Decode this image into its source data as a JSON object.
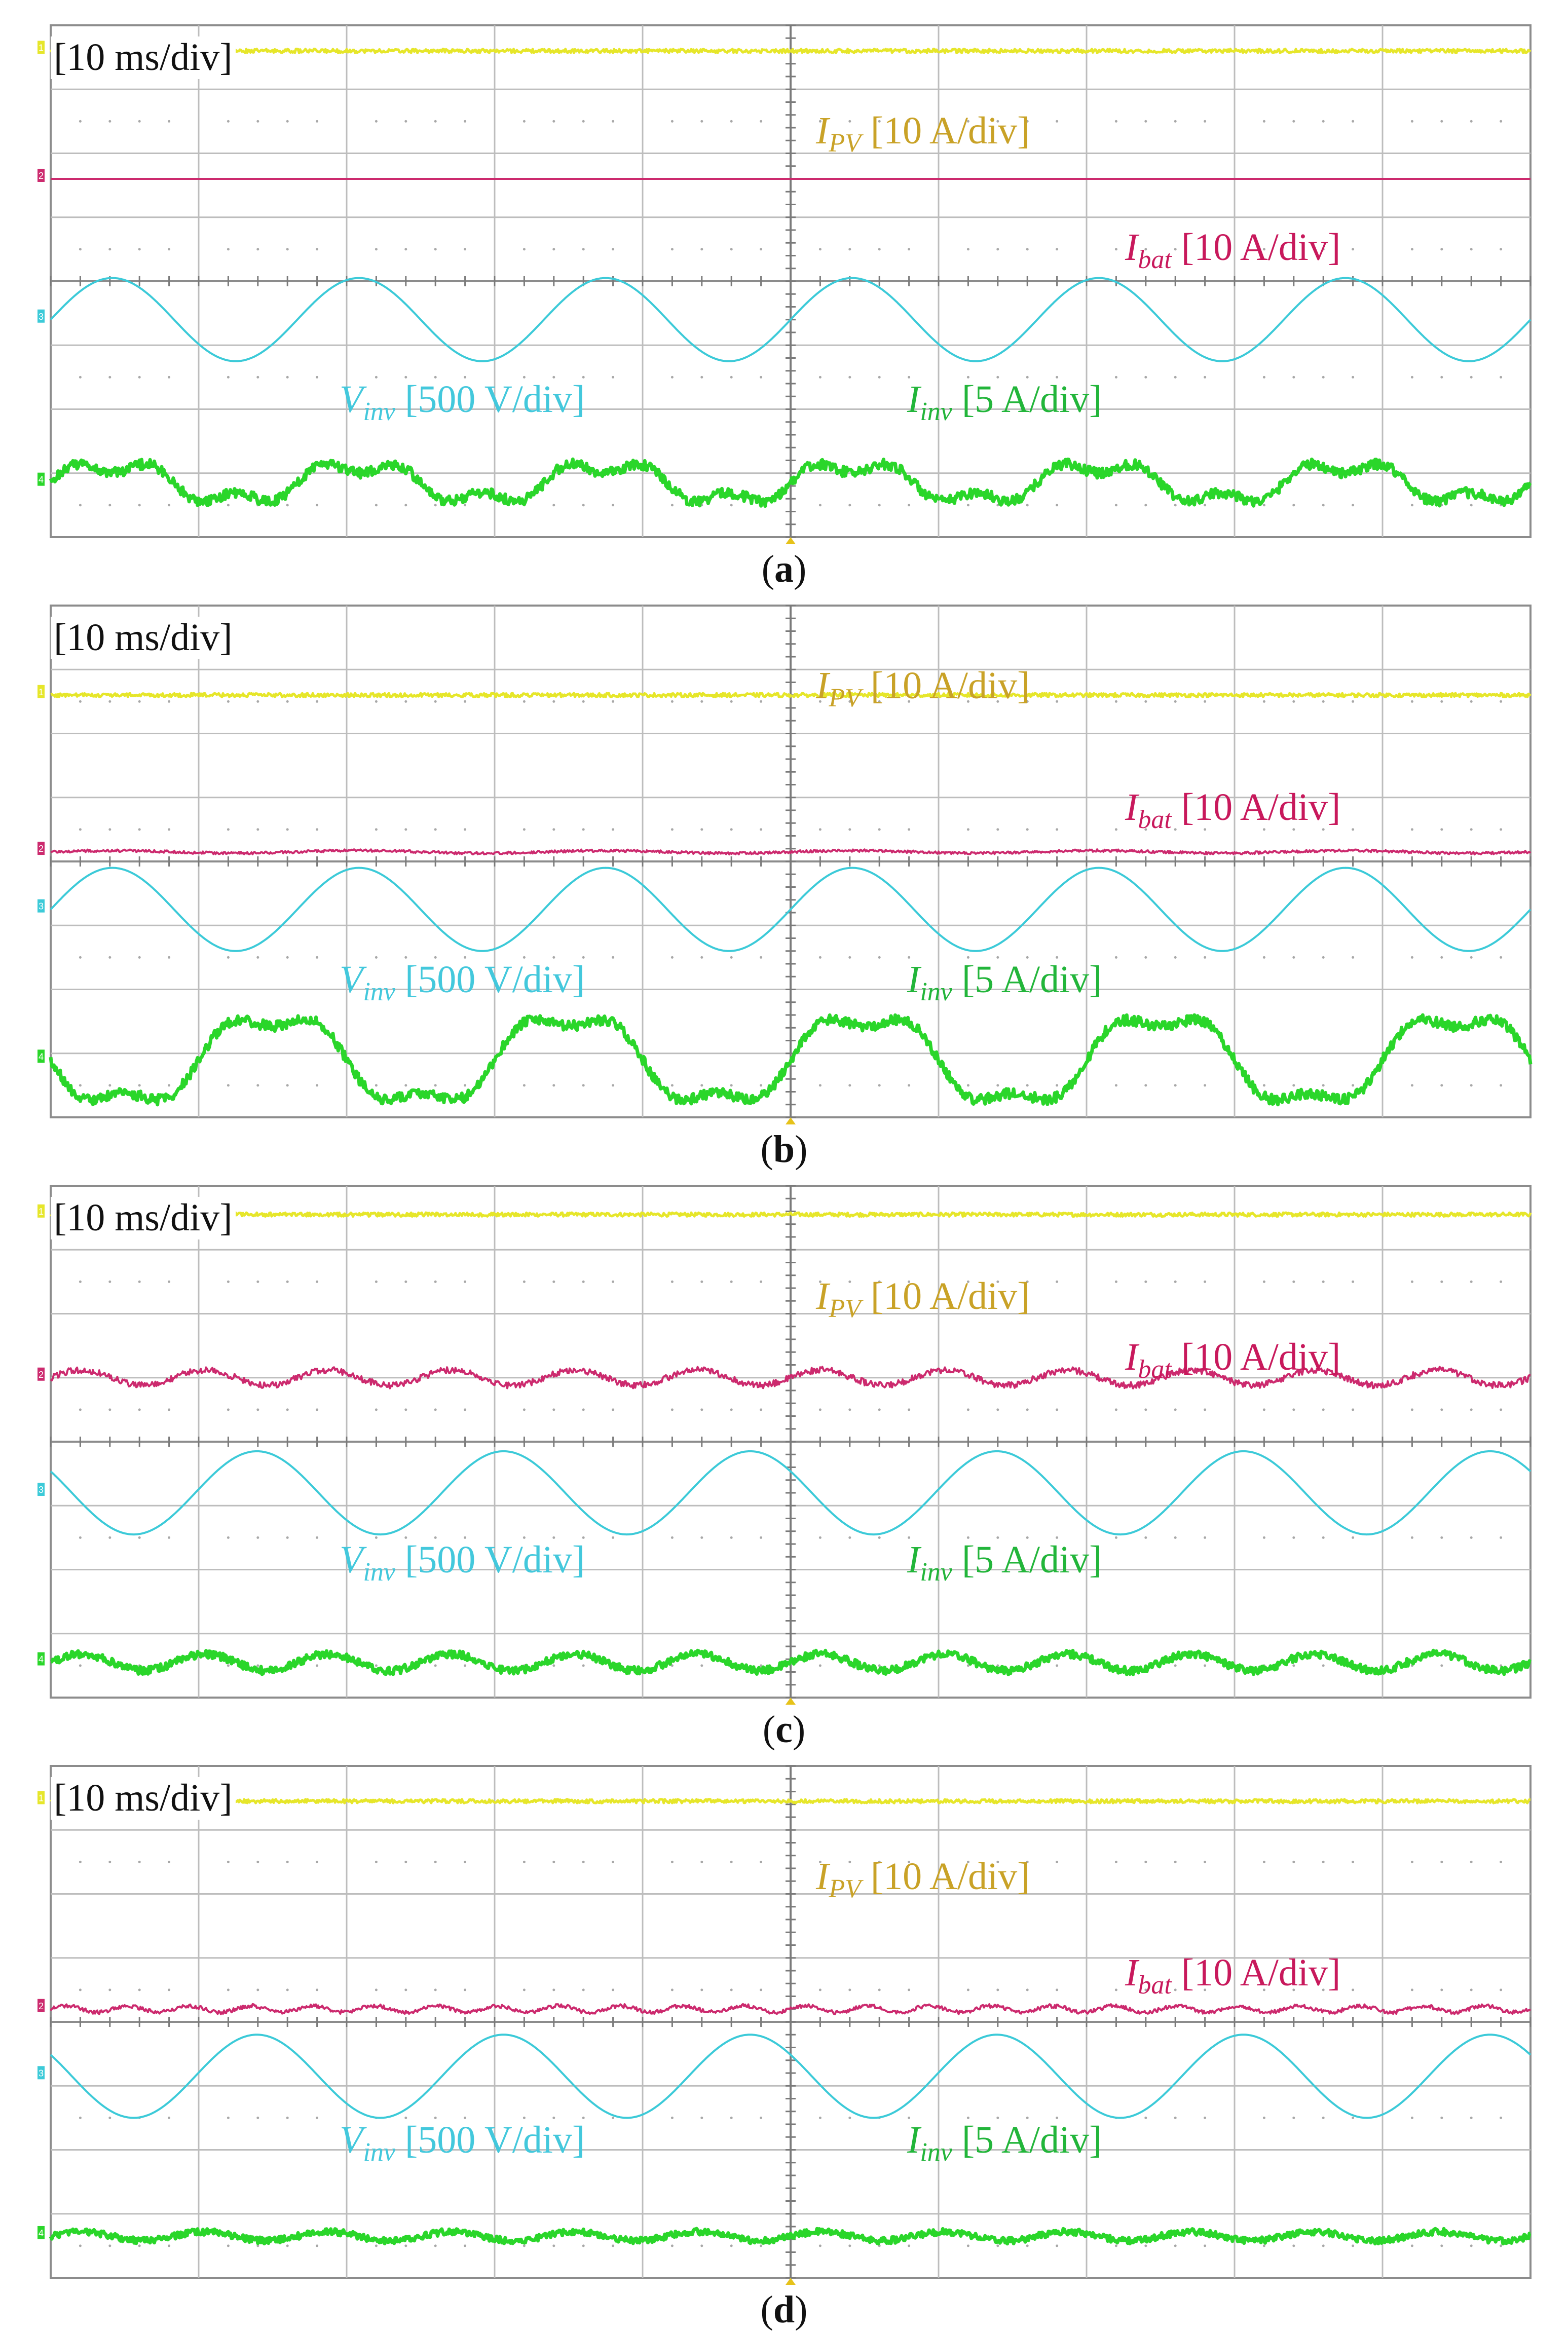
{
  "chart_data": [
    {
      "type": "line",
      "caption_letter": "a",
      "timebase": "[10 ms/div]",
      "x_divisions": 10,
      "y_divisions": 8,
      "labels": {
        "ipv": {
          "symbol": "I",
          "sub": "PV",
          "scale": " [10 A/div]"
        },
        "ibat": {
          "symbol": "I",
          "sub": "bat",
          "scale": " [10 A/div]"
        },
        "vinv": {
          "symbol": "V",
          "sub": "inv",
          "scale": " [500 V/div]"
        },
        "iinv": {
          "symbol": "I",
          "sub": "inv",
          "scale": " [5 A/div]"
        }
      },
      "channel_markers": [
        "1",
        "2",
        "3",
        "4"
      ],
      "series": [
        {
          "channel": "ipv",
          "color": "#e6e62a",
          "level_div": 7.6,
          "amplitude_div": 0.0,
          "fundamental_periods": 0,
          "ripple_div": 0.03
        },
        {
          "channel": "ibat",
          "color": "#cc2a6e",
          "level_div": 5.6,
          "amplitude_div": 0.0,
          "fundamental_periods": 0,
          "ripple_div": 0.0
        },
        {
          "channel": "vinv",
          "color": "#3ccad8",
          "level_div": 3.4,
          "amplitude_div": 0.65,
          "fundamental_periods": 6,
          "phase": 0.0,
          "ripple_div": 0.0
        },
        {
          "channel": "iinv",
          "color": "#2ad62a",
          "level_div": 0.85,
          "amplitude_div": 0.28,
          "fundamental_periods": 6,
          "phase": 0.0,
          "harmonic3": 0.45,
          "ripple_div": 0.08
        }
      ]
    },
    {
      "type": "line",
      "caption_letter": "b",
      "timebase": "[10 ms/div]",
      "x_divisions": 10,
      "y_divisions": 8,
      "labels": {
        "ipv": {
          "symbol": "I",
          "sub": "PV",
          "scale": " [10 A/div]"
        },
        "ibat": {
          "symbol": "I",
          "sub": "bat",
          "scale": " [10 A/div]"
        },
        "vinv": {
          "symbol": "V",
          "sub": "inv",
          "scale": " [500 V/div]"
        },
        "iinv": {
          "symbol": "I",
          "sub": "inv",
          "scale": " [5 A/div]"
        }
      },
      "channel_markers": [
        "1",
        "2",
        "3",
        "4"
      ],
      "series": [
        {
          "channel": "ipv",
          "color": "#e6e62a",
          "level_div": 6.6,
          "amplitude_div": 0.0,
          "fundamental_periods": 0,
          "ripple_div": 0.03
        },
        {
          "channel": "ibat",
          "color": "#cc2a6e",
          "level_div": 4.15,
          "amplitude_div": 0.02,
          "fundamental_periods": 6,
          "phase": 0.0,
          "ripple_div": 0.02
        },
        {
          "channel": "vinv",
          "color": "#3ccad8",
          "level_div": 3.25,
          "amplitude_div": 0.65,
          "fundamental_periods": 6,
          "phase": 0.0,
          "ripple_div": 0.0
        },
        {
          "channel": "iinv",
          "color": "#2ad62a",
          "level_div": 0.9,
          "amplitude_div": 0.7,
          "fundamental_periods": 5,
          "phase": 3.14,
          "harmonic3": 0.25,
          "ripple_div": 0.08
        }
      ]
    },
    {
      "type": "line",
      "caption_letter": "c",
      "timebase": "[10 ms/div]",
      "x_divisions": 10,
      "y_divisions": 8,
      "labels": {
        "ipv": {
          "symbol": "I",
          "sub": "PV",
          "scale": " [10 A/div]"
        },
        "ibat": {
          "symbol": "I",
          "sub": "bat",
          "scale": " [10 A/div]"
        },
        "vinv": {
          "symbol": "V",
          "sub": "inv",
          "scale": " [500 V/div]"
        },
        "iinv": {
          "symbol": "I",
          "sub": "inv",
          "scale": " [5 A/div]"
        }
      },
      "channel_markers": [
        "1",
        "2",
        "3",
        "4"
      ],
      "series": [
        {
          "channel": "ipv",
          "color": "#e6e62a",
          "level_div": 7.55,
          "amplitude_div": 0.0,
          "fundamental_periods": 0,
          "ripple_div": 0.03
        },
        {
          "channel": "ibat",
          "color": "#cc2a6e",
          "level_div": 5.0,
          "amplitude_div": 0.12,
          "fundamental_periods": 12,
          "phase": 0.0,
          "ripple_div": 0.05
        },
        {
          "channel": "vinv",
          "color": "#3ccad8",
          "level_div": 3.2,
          "amplitude_div": 0.65,
          "fundamental_periods": 6,
          "phase": 2.6,
          "ripple_div": 0.0
        },
        {
          "channel": "iinv",
          "color": "#2ad62a",
          "level_div": 0.55,
          "amplitude_div": 0.13,
          "fundamental_periods": 12,
          "phase": 0.0,
          "ripple_div": 0.06
        }
      ]
    },
    {
      "type": "line",
      "caption_letter": "d",
      "timebase": "[10 ms/div]",
      "x_divisions": 10,
      "y_divisions": 8,
      "labels": {
        "ipv": {
          "symbol": "I",
          "sub": "PV",
          "scale": " [10 A/div]"
        },
        "ibat": {
          "symbol": "I",
          "sub": "bat",
          "scale": " [10 A/div]"
        },
        "vinv": {
          "symbol": "V",
          "sub": "inv",
          "scale": " [500 V/div]"
        },
        "iinv": {
          "symbol": "I",
          "sub": "inv",
          "scale": " [5 A/div]"
        }
      },
      "channel_markers": [
        "1",
        "2",
        "3",
        "4"
      ],
      "series": [
        {
          "channel": "ipv",
          "color": "#e6e62a",
          "level_div": 7.45,
          "amplitude_div": 0.0,
          "fundamental_periods": 0,
          "ripple_div": 0.03
        },
        {
          "channel": "ibat",
          "color": "#cc2a6e",
          "level_div": 4.2,
          "amplitude_div": 0.05,
          "fundamental_periods": 24,
          "phase": 0.0,
          "ripple_div": 0.03
        },
        {
          "channel": "vinv",
          "color": "#3ccad8",
          "level_div": 3.15,
          "amplitude_div": 0.65,
          "fundamental_periods": 6,
          "phase": 2.6,
          "ripple_div": 0.0
        },
        {
          "channel": "iinv",
          "color": "#2ad62a",
          "level_div": 0.65,
          "amplitude_div": 0.07,
          "fundamental_periods": 12,
          "phase": 0.0,
          "ripple_div": 0.05
        }
      ]
    }
  ]
}
